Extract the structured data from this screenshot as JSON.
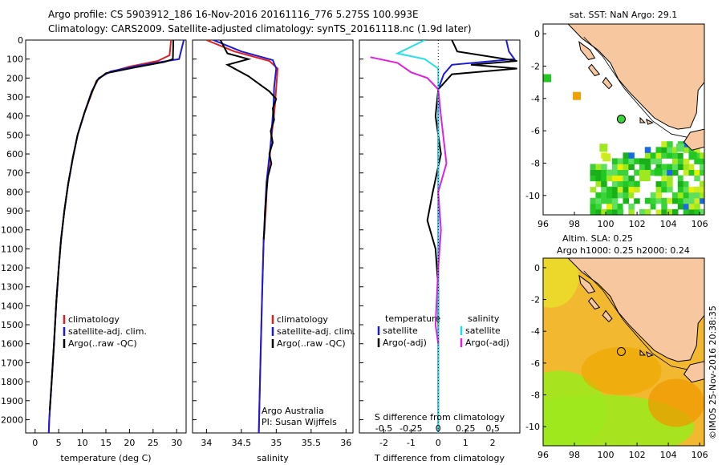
{
  "header": {
    "line1": "Argo profile: CS 5903912_186 16-Nov-2016 20161116_776 5.275S 100.993E",
    "line2": "Climatology: CARS2009. Satellite-adjusted climatology: synTS_20161118.nc (1.9d later)"
  },
  "side_text": "©IMOS 25-Nov-2016 20:38:35",
  "colors": {
    "climatology": "#e02020",
    "satellite": "#1a1ad8",
    "argo": "#000000",
    "cyan": "#22e0e8",
    "magenta": "#e020e0",
    "land": "#f7c8a0"
  },
  "chart_data": [
    {
      "id": "temperature",
      "type": "line",
      "xlabel": "temperature (deg C)",
      "xticks": [
        0,
        5,
        10,
        15,
        20,
        25,
        30
      ],
      "xlim": [
        -2,
        32
      ],
      "ylim": [
        2070,
        0
      ],
      "yticks": [
        0,
        100,
        200,
        300,
        400,
        500,
        600,
        700,
        800,
        900,
        1000,
        1100,
        1200,
        1300,
        1400,
        1500,
        1600,
        1700,
        1800,
        1900,
        2000
      ],
      "legend": [
        "climatology",
        "satellite-adj. clim.",
        "Argo(..raw -QC)"
      ],
      "series": [
        {
          "role": "climatology",
          "points": [
            [
              28.8,
              0
            ],
            [
              28.5,
              80
            ],
            [
              26,
              110
            ],
            [
              20,
              140
            ],
            [
              15,
              175
            ],
            [
              13,
              215
            ],
            [
              12,
              280
            ],
            [
              10.5,
              380
            ],
            [
              9,
              500
            ],
            [
              8,
              620
            ],
            [
              7,
              760
            ],
            [
              6.2,
              900
            ],
            [
              5.5,
              1050
            ],
            [
              5,
              1200
            ],
            [
              4.5,
              1380
            ],
            [
              4,
              1600
            ],
            [
              3.5,
              1800
            ],
            [
              3,
              2000
            ],
            [
              2.9,
              2070
            ]
          ]
        },
        {
          "role": "satellite",
          "points": [
            [
              31.5,
              0
            ],
            [
              30.5,
              100
            ],
            [
              28,
              110
            ],
            [
              22,
              135
            ],
            [
              16,
              165
            ],
            [
              13.5,
              200
            ],
            [
              12,
              270
            ],
            [
              10.5,
              380
            ],
            [
              9,
              500
            ],
            [
              8,
              620
            ],
            [
              7,
              760
            ],
            [
              6.2,
              900
            ],
            [
              5.5,
              1050
            ],
            [
              5,
              1200
            ],
            [
              4.5,
              1380
            ],
            [
              4,
              1600
            ],
            [
              3.5,
              1800
            ],
            [
              3,
              2000
            ],
            [
              2.9,
              2070
            ]
          ]
        },
        {
          "role": "argo",
          "points": [
            [
              29.3,
              0
            ],
            [
              29.2,
              100
            ],
            [
              27.5,
              115
            ],
            [
              21,
              145
            ],
            [
              15,
              175
            ],
            [
              13.2,
              210
            ],
            [
              12.1,
              270
            ],
            [
              10.5,
              380
            ],
            [
              9,
              500
            ],
            [
              8,
              620
            ],
            [
              7,
              760
            ],
            [
              6.2,
              900
            ],
            [
              5.5,
              1050
            ],
            [
              5,
              1200
            ],
            [
              4.5,
              1380
            ],
            [
              4,
              1600
            ],
            [
              3.5,
              1800
            ],
            [
              3.1,
              1950
            ]
          ]
        }
      ]
    },
    {
      "id": "salinity",
      "type": "line",
      "xlabel": "salinity",
      "xticks": [
        34,
        34.5,
        35,
        35.5,
        36
      ],
      "xlim": [
        33.8,
        36.1
      ],
      "ylim": [
        2070,
        0
      ],
      "legend": [
        "climatology",
        "satellite-adj. clim.",
        "Argo(..raw -QC)"
      ],
      "annotation": [
        "Argo Australia",
        "PI: Susan Wijffels"
      ],
      "series": [
        {
          "role": "climatology",
          "points": [
            [
              34.0,
              0
            ],
            [
              34.4,
              60
            ],
            [
              34.9,
              110
            ],
            [
              35.02,
              150
            ],
            [
              35.0,
              250
            ],
            [
              34.98,
              350
            ],
            [
              34.95,
              450
            ],
            [
              34.92,
              550
            ],
            [
              34.9,
              650
            ],
            [
              34.87,
              750
            ],
            [
              34.85,
              900
            ],
            [
              34.82,
              1050
            ],
            [
              34.8,
              1300
            ],
            [
              34.78,
              1600
            ],
            [
              34.76,
              1900
            ],
            [
              34.75,
              2070
            ]
          ]
        },
        {
          "role": "satellite",
          "points": [
            [
              34.1,
              0
            ],
            [
              34.5,
              60
            ],
            [
              34.95,
              105
            ],
            [
              35.0,
              150
            ],
            [
              34.97,
              250
            ],
            [
              34.96,
              350
            ],
            [
              34.94,
              450
            ],
            [
              34.92,
              550
            ],
            [
              34.89,
              650
            ],
            [
              34.86,
              750
            ],
            [
              34.84,
              900
            ],
            [
              34.82,
              1050
            ],
            [
              34.8,
              1300
            ],
            [
              34.78,
              1600
            ],
            [
              34.76,
              1900
            ],
            [
              34.75,
              2070
            ]
          ]
        },
        {
          "role": "argo",
          "points": [
            [
              34.2,
              0
            ],
            [
              34.3,
              70
            ],
            [
              34.6,
              100
            ],
            [
              34.3,
              130
            ],
            [
              34.45,
              160
            ],
            [
              34.6,
              190
            ],
            [
              34.75,
              230
            ],
            [
              34.9,
              270
            ],
            [
              35.0,
              310
            ],
            [
              34.95,
              360
            ],
            [
              34.97,
              420
            ],
            [
              34.92,
              480
            ],
            [
              34.95,
              540
            ],
            [
              34.9,
              600
            ],
            [
              34.93,
              650
            ],
            [
              34.88,
              720
            ],
            [
              34.86,
              800
            ],
            [
              34.84,
              900
            ],
            [
              34.83,
              1000
            ],
            [
              34.82,
              1050
            ]
          ]
        }
      ]
    },
    {
      "id": "differences",
      "type": "line",
      "xlabel": "T difference from climatology",
      "xlabel_top": "S difference from climatology",
      "xticks": [
        -2,
        -1,
        0,
        1,
        2
      ],
      "xticks_top": [
        "-0.5",
        "-0.25",
        "0",
        "0.25",
        "0.5"
      ],
      "xlim": [
        -2.9,
        3.0
      ],
      "ylim": [
        2070,
        0
      ],
      "legend_temperature": {
        "title": "temperature",
        "items": [
          "satellite",
          "Argo(-adj)"
        ]
      },
      "legend_salinity": {
        "title": "salinity",
        "items": [
          "satellite",
          "Argo(-adj)"
        ]
      },
      "series": [
        {
          "role": "satellite",
          "points": [
            [
              2.5,
              0
            ],
            [
              2.6,
              60
            ],
            [
              2.8,
              100
            ],
            [
              0.5,
              130
            ],
            [
              0.2,
              180
            ],
            [
              0,
              260
            ],
            [
              0,
              2070
            ]
          ]
        },
        {
          "role": "argo",
          "points": [
            [
              0.5,
              0
            ],
            [
              0.7,
              60
            ],
            [
              2.9,
              110
            ],
            [
              1.2,
              130
            ],
            [
              2.9,
              150
            ],
            [
              0.5,
              180
            ],
            [
              0,
              260
            ],
            [
              -0.1,
              400
            ],
            [
              0.1,
              600
            ],
            [
              -0.2,
              800
            ],
            [
              -0.4,
              950
            ],
            [
              -0.1,
              1100
            ],
            [
              0,
              1300
            ],
            [
              0,
              1500
            ]
          ]
        },
        {
          "role": "cyan",
          "points": [
            [
              -0.5,
              0
            ],
            [
              -1.5,
              70
            ],
            [
              -0.5,
              100
            ],
            [
              0,
              150
            ],
            [
              0,
              260
            ],
            [
              0,
              2070
            ]
          ]
        },
        {
          "role": "magenta",
          "points": [
            [
              -2.5,
              90
            ],
            [
              -1.5,
              120
            ],
            [
              -1.0,
              170
            ],
            [
              -0.4,
              200
            ],
            [
              0,
              260
            ],
            [
              0.1,
              400
            ],
            [
              0.3,
              650
            ],
            [
              0,
              800
            ],
            [
              0.1,
              1000
            ],
            [
              0,
              1200
            ],
            [
              -0.1,
              1500
            ],
            [
              0,
              1600
            ]
          ]
        }
      ]
    },
    {
      "id": "sst-map",
      "type": "heatmap",
      "title": "sat. SST: NaN Argo: 29.1",
      "xticks": [
        96,
        98,
        100,
        102,
        104,
        106
      ],
      "yticks": [
        0,
        -2,
        -4,
        -6,
        -8,
        -10
      ],
      "xlim": [
        96,
        106.3
      ],
      "ylim": [
        -11.2,
        0.6
      ],
      "profile": {
        "lon": 100.993,
        "lat": -5.275
      }
    },
    {
      "id": "sla-map",
      "type": "heatmap",
      "title_lines": [
        "Altim. SLA: 0.25",
        "Argo h1000: 0.25 h2000: 0.24"
      ],
      "xticks": [
        96,
        98,
        100,
        102,
        104,
        106
      ],
      "yticks": [
        0,
        -2,
        -4,
        -6,
        -8,
        -10
      ],
      "xlim": [
        96,
        106.3
      ],
      "ylim": [
        -11.2,
        0.6
      ],
      "profile": {
        "lon": 100.993,
        "lat": -5.275
      }
    }
  ]
}
